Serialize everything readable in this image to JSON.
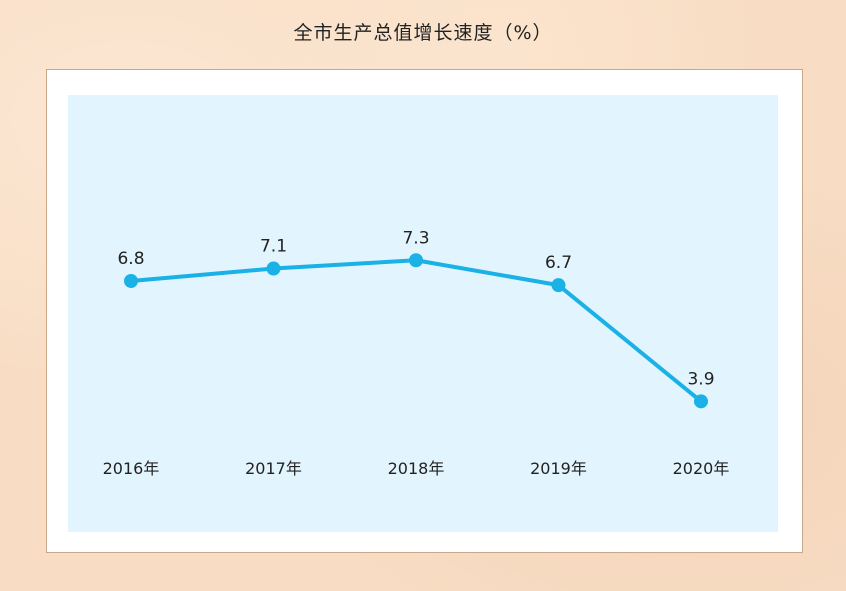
{
  "title": "全市生产总值增长速度（%）",
  "colors": {
    "line": "#19b1e6",
    "plot_background": "#e2f4fd",
    "frame_background": "#ffffff",
    "page_background": "#f8ddc4"
  },
  "chart_data": {
    "type": "line",
    "title": "全市生产总值增长速度（%）",
    "categories": [
      "2016年",
      "2017年",
      "2018年",
      "2019年",
      "2020年"
    ],
    "series": [
      {
        "values": [
          6.8,
          7.1,
          7.3,
          6.7,
          3.9
        ]
      }
    ],
    "data_labels": [
      "6.8",
      "7.1",
      "7.3",
      "6.7",
      "3.9"
    ],
    "xlabel": "",
    "ylabel": "",
    "grid": false,
    "axes_visible": false
  }
}
